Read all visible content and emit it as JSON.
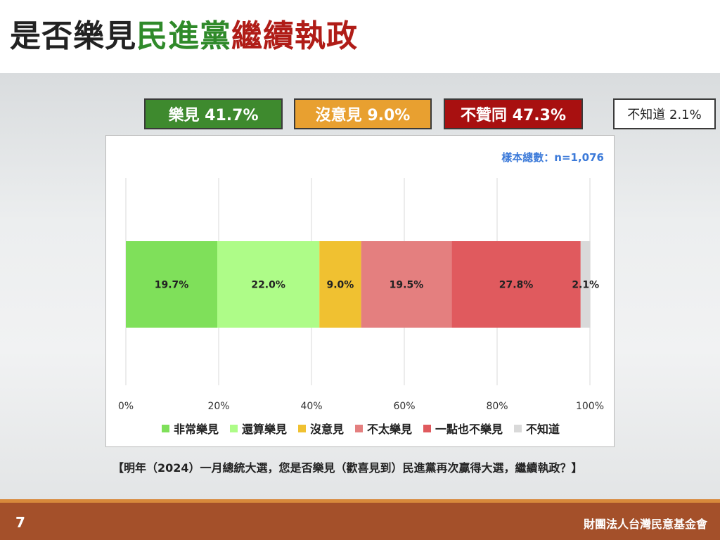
{
  "title": {
    "part1": "是否樂見",
    "part2": "民進黨",
    "part3": "繼續執政",
    "colors": {
      "part1": "#222222",
      "part2": "#2f8a2a",
      "part3": "#b01c17"
    }
  },
  "summary": {
    "approve": "樂見 41.7%",
    "neutral": "沒意見 9.0%",
    "disapprove": "不贊同 47.3%",
    "unknown": "不知道 2.1%"
  },
  "sample_size": "樣本總數：n=1,076",
  "question": "【明年（2024）一月總統大選，您是否樂見（歡喜見到）民進黨再次贏得大選，繼續執政？】",
  "footer": {
    "page_number": "7",
    "organization": "財團法人台灣民意基金會"
  },
  "chart_data": {
    "type": "bar",
    "orientation": "horizontal-stacked",
    "xlim": [
      0,
      100
    ],
    "x_ticks": [
      "0%",
      "20%",
      "40%",
      "60%",
      "80%",
      "100%"
    ],
    "grid": true,
    "legend_position": "bottom",
    "series": [
      {
        "name": "非常樂見",
        "value": 19.7,
        "label": "19.7%",
        "color": "#7fe05a"
      },
      {
        "name": "還算樂見",
        "value": 22.0,
        "label": "22.0%",
        "color": "#aefc88"
      },
      {
        "name": "沒意見",
        "value": 9.0,
        "label": "9.0%",
        "color": "#f0c131"
      },
      {
        "name": "不太樂見",
        "value": 19.5,
        "label": "19.5%",
        "color": "#e47f7f"
      },
      {
        "name": "一點也不樂見",
        "value": 27.8,
        "label": "27.8%",
        "color": "#e05a5e"
      },
      {
        "name": "不知道",
        "value": 2.1,
        "label": "2.1%",
        "color": "#d9d9d9"
      }
    ]
  }
}
